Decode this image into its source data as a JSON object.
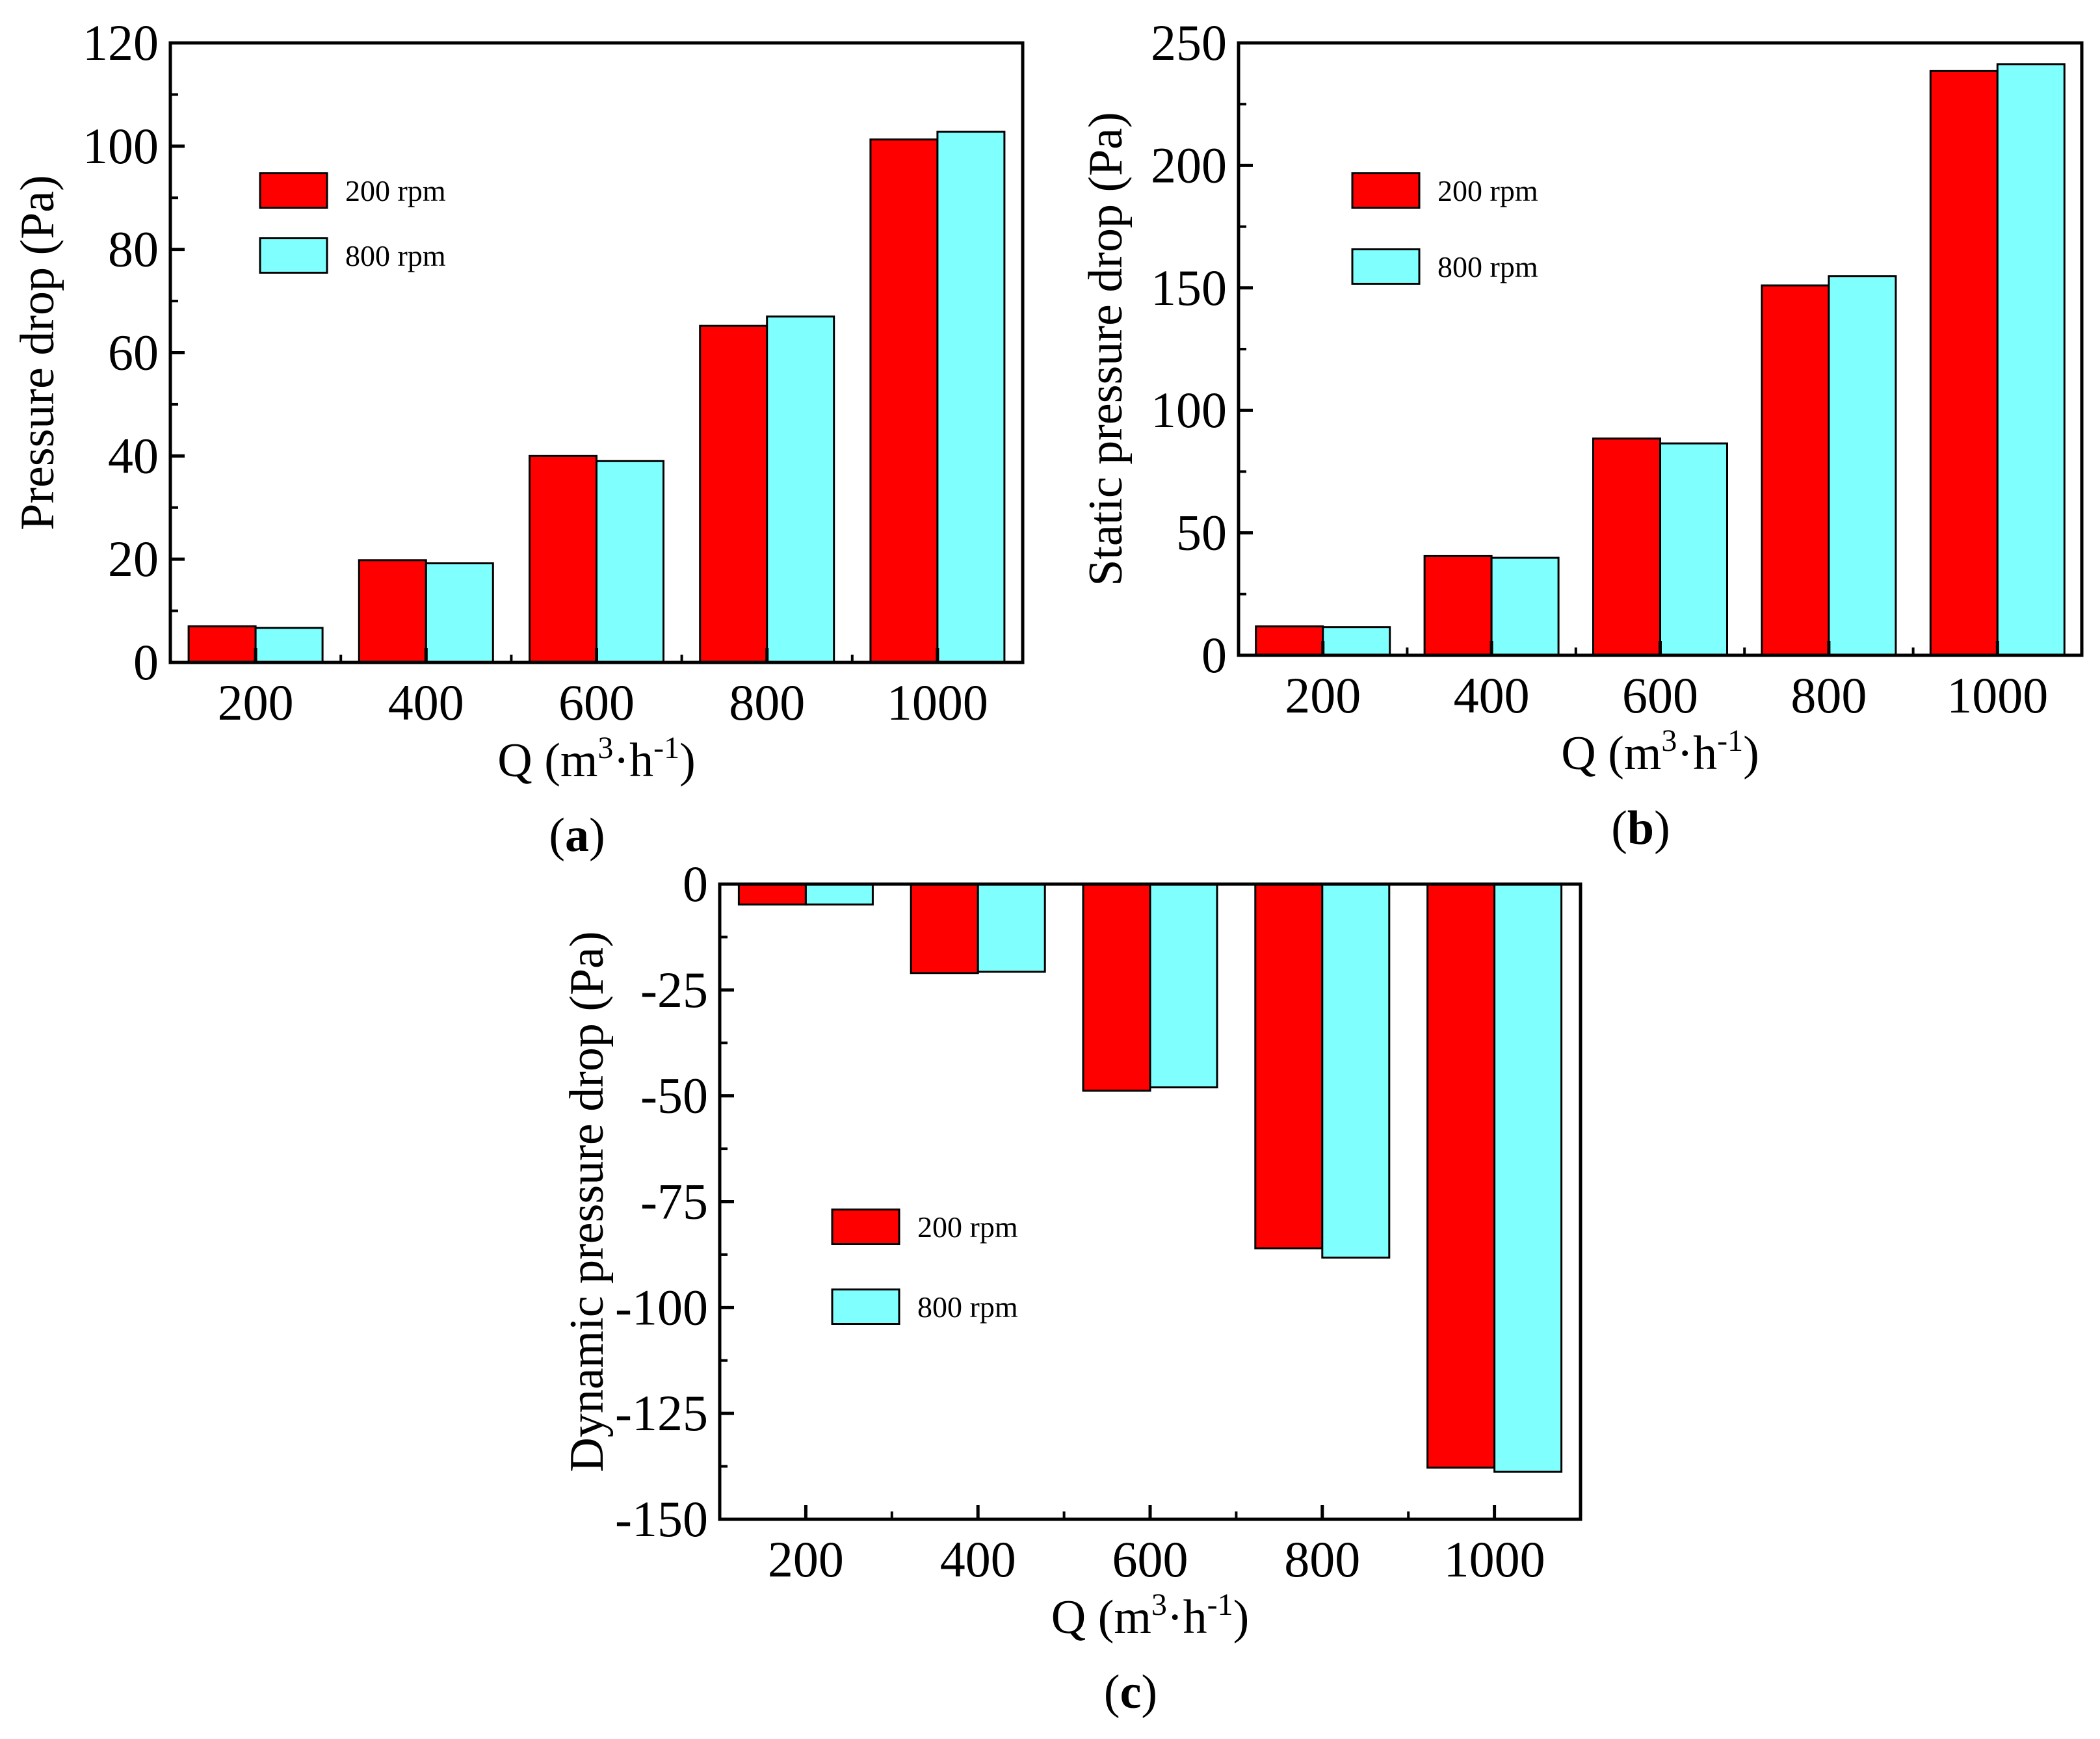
{
  "colors": {
    "series_200": "#ff0000",
    "series_800": "#80ffff",
    "axis": "#000000"
  },
  "chart_data": [
    {
      "id": "a",
      "type": "bar",
      "panel_letter": "a",
      "panel_open": "(",
      "panel_close": ")",
      "categories": [
        "200",
        "400",
        "600",
        "800",
        "1000"
      ],
      "series": [
        {
          "name": "200 rpm",
          "values": [
            7.0,
            19.8,
            40.0,
            65.2,
            101.3
          ]
        },
        {
          "name": "800 rpm",
          "values": [
            6.7,
            19.2,
            39.0,
            67.0,
            102.8
          ]
        }
      ],
      "ylabel": "Pressure drop (Pa)",
      "xlabel_main": "Q (m",
      "xlabel_sup1": "3",
      "xlabel_dot": "·",
      "xlabel_h": "h",
      "xlabel_sup2": "-1",
      "xlabel_close": ")",
      "ylim": [
        0,
        120
      ],
      "yticks": [
        "0",
        "20",
        "40",
        "60",
        "80",
        "100",
        "120"
      ],
      "legend_position": "upper-left"
    },
    {
      "id": "b",
      "type": "bar",
      "panel_letter": "b",
      "panel_open": "(",
      "panel_close": ")",
      "categories": [
        "200",
        "400",
        "600",
        "800",
        "1000"
      ],
      "series": [
        {
          "name": "200 rpm",
          "values": [
            11.8,
            40.5,
            88.5,
            151.0,
            238.5
          ]
        },
        {
          "name": "800 rpm",
          "values": [
            11.5,
            39.8,
            86.5,
            154.8,
            241.3
          ]
        }
      ],
      "ylabel": "Static pressure drop (Pa)",
      "xlabel_main": "Q (m",
      "xlabel_sup1": "3",
      "xlabel_dot": "·",
      "xlabel_h": "h",
      "xlabel_sup2": "-1",
      "xlabel_close": ")",
      "ylim": [
        0,
        250
      ],
      "yticks": [
        "0",
        "50",
        "100",
        "150",
        "200",
        "250"
      ],
      "legend_position": "upper-left"
    },
    {
      "id": "c",
      "type": "bar",
      "panel_letter": "c",
      "panel_open": "(",
      "panel_close": ")",
      "categories": [
        "200",
        "400",
        "600",
        "800",
        "1000"
      ],
      "series": [
        {
          "name": "200 rpm",
          "values": [
            -4.8,
            -21.0,
            -48.8,
            -86.0,
            -137.8
          ]
        },
        {
          "name": "800 rpm",
          "values": [
            -4.8,
            -20.7,
            -48.0,
            -88.2,
            -138.8
          ]
        }
      ],
      "ylabel": "Dynamic pressure drop (Pa)",
      "xlabel_main": "Q (m",
      "xlabel_sup1": "3",
      "xlabel_dot": "·",
      "xlabel_h": "h",
      "xlabel_sup2": "-1",
      "xlabel_close": ")",
      "ylim": [
        -150,
        0
      ],
      "yticks": [
        "0",
        "-25",
        "-50",
        "-75",
        "-100",
        "-125",
        "-150"
      ],
      "legend_position": "lower-left"
    }
  ]
}
